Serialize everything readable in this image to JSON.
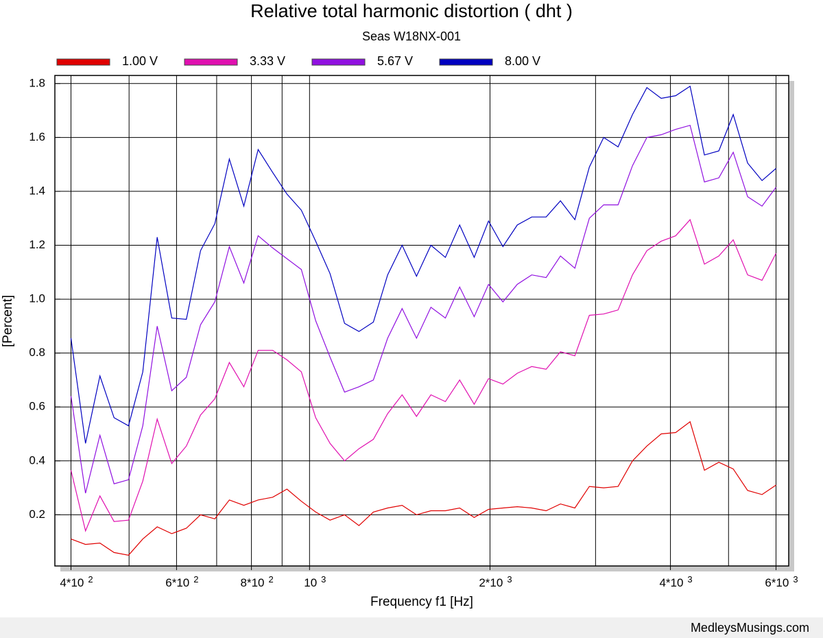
{
  "chart_data": {
    "type": "line",
    "title": "Relative total harmonic distortion  ( dht )",
    "subtitle": "Seas W18NX-001",
    "x_label": "Frequency f1  [Hz]",
    "y_label": "[Percent]",
    "footer": "MedleysMusings.com",
    "x_scale": "log",
    "grid": true,
    "legend": "top",
    "xlim": [
      376,
      6300
    ],
    "ylim": [
      0.01,
      1.83
    ],
    "xticks": [
      {
        "value": 400,
        "label": "4*10",
        "exponent": "2"
      },
      {
        "value": 600,
        "label": "6*10",
        "exponent": "2"
      },
      {
        "value": 800,
        "label": "8*10",
        "exponent": "2"
      },
      {
        "value": 1000,
        "label": "10",
        "exponent": "3"
      },
      {
        "value": 2000,
        "label": "2*10",
        "exponent": "3"
      },
      {
        "value": 4000,
        "label": "4*10",
        "exponent": "3"
      },
      {
        "value": 6000,
        "label": "6*10",
        "exponent": "3"
      }
    ],
    "xgrid_minor": [
      500,
      700,
      900,
      3000,
      5000
    ],
    "yticks": [
      0.2,
      0.4,
      0.6,
      0.8,
      {
        "value": 1,
        "label": "1.0"
      },
      1.2,
      1.4,
      1.6,
      1.8
    ],
    "x": [
      400,
      423,
      447,
      472,
      499,
      527,
      557,
      589,
      623,
      658,
      695,
      735,
      777,
      821,
      868,
      917,
      969,
      1024,
      1082,
      1144,
      1209,
      1278,
      1350,
      1427,
      1508,
      1594,
      1685,
      1780,
      1882,
      1989,
      2102,
      2221,
      2348,
      2481,
      2622,
      2771,
      2929,
      3095,
      3271,
      3457,
      3654,
      3861,
      4081,
      4313,
      4558,
      4817,
      5091,
      5380,
      5686,
      6000
    ],
    "series": [
      {
        "name": "1.00 V",
        "color": "#e00000",
        "values": [
          0.11,
          0.09,
          0.095,
          0.06,
          0.05,
          0.11,
          0.155,
          0.13,
          0.15,
          0.2,
          0.185,
          0.255,
          0.235,
          0.255,
          0.265,
          0.295,
          0.25,
          0.21,
          0.18,
          0.2,
          0.16,
          0.21,
          0.225,
          0.235,
          0.2,
          0.215,
          0.215,
          0.225,
          0.19,
          0.22,
          0.225,
          0.23,
          0.225,
          0.215,
          0.24,
          0.225,
          0.305,
          0.3,
          0.305,
          0.4,
          0.455,
          0.5,
          0.505,
          0.545,
          0.365,
          0.395,
          0.37,
          0.29,
          0.275,
          0.31
        ]
      },
      {
        "name": "3.33 V",
        "color": "#e010b0",
        "values": [
          0.365,
          0.14,
          0.27,
          0.175,
          0.18,
          0.325,
          0.555,
          0.39,
          0.455,
          0.57,
          0.63,
          0.765,
          0.675,
          0.81,
          0.81,
          0.775,
          0.73,
          0.56,
          0.465,
          0.4,
          0.445,
          0.48,
          0.575,
          0.645,
          0.565,
          0.645,
          0.62,
          0.7,
          0.61,
          0.705,
          0.685,
          0.725,
          0.75,
          0.74,
          0.805,
          0.79,
          0.94,
          0.945,
          0.96,
          1.09,
          1.18,
          1.215,
          1.235,
          1.295,
          1.13,
          1.16,
          1.22,
          1.09,
          1.07,
          1.17
        ]
      },
      {
        "name": "5.67 V",
        "color": "#9010e0",
        "values": [
          0.64,
          0.28,
          0.495,
          0.315,
          0.33,
          0.53,
          0.9,
          0.66,
          0.71,
          0.905,
          0.99,
          1.195,
          1.06,
          1.235,
          1.19,
          1.15,
          1.11,
          0.92,
          0.785,
          0.655,
          0.675,
          0.7,
          0.855,
          0.965,
          0.855,
          0.97,
          0.93,
          1.045,
          0.935,
          1.055,
          0.99,
          1.055,
          1.09,
          1.08,
          1.16,
          1.115,
          1.3,
          1.35,
          1.35,
          1.495,
          1.6,
          1.61,
          1.63,
          1.645,
          1.435,
          1.45,
          1.545,
          1.38,
          1.345,
          1.415
        ]
      },
      {
        "name": "8.00 V",
        "color": "#0000c0",
        "values": [
          0.855,
          0.465,
          0.715,
          0.56,
          0.53,
          0.73,
          1.23,
          0.93,
          0.925,
          1.18,
          1.28,
          1.52,
          1.345,
          1.555,
          1.47,
          1.39,
          1.33,
          1.215,
          1.095,
          0.91,
          0.88,
          0.915,
          1.09,
          1.2,
          1.085,
          1.2,
          1.155,
          1.275,
          1.155,
          1.29,
          1.195,
          1.275,
          1.305,
          1.305,
          1.365,
          1.295,
          1.49,
          1.6,
          1.565,
          1.685,
          1.785,
          1.745,
          1.755,
          1.79,
          1.535,
          1.55,
          1.685,
          1.505,
          1.44,
          1.485
        ]
      }
    ]
  }
}
